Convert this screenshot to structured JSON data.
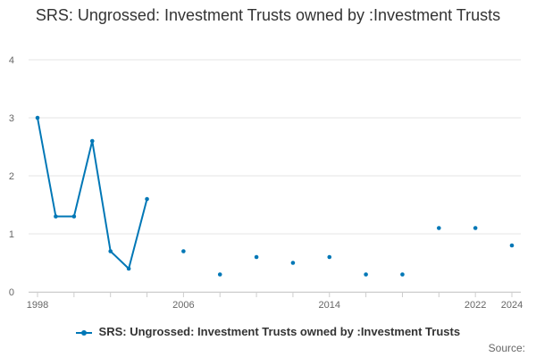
{
  "chart_data": {
    "type": "line",
    "title": "SRS: Ungrossed: Investment Trusts owned by :Investment Trusts",
    "xlabel": "",
    "ylabel": "",
    "xlim": [
      1998,
      2024
    ],
    "ylim": [
      0,
      4
    ],
    "x_ticks": [
      1998,
      2006,
      2014,
      2022,
      2024
    ],
    "y_ticks": [
      0,
      1,
      2,
      3,
      4
    ],
    "grid": "horizontal",
    "legend": "bottom-center",
    "series": [
      {
        "name": "SRS: Ungrossed: Investment Trusts owned by :Investment Trusts",
        "color": "#0077b6",
        "points": [
          {
            "x": 1998,
            "y": 3.0
          },
          {
            "x": 1999,
            "y": 1.3
          },
          {
            "x": 2000,
            "y": 1.3
          },
          {
            "x": 2001,
            "y": 2.6
          },
          {
            "x": 2002,
            "y": 0.7
          },
          {
            "x": 2003,
            "y": 0.4
          },
          {
            "x": 2004,
            "y": 1.6
          },
          {
            "x": 2006,
            "y": 0.7
          },
          {
            "x": 2008,
            "y": 0.3
          },
          {
            "x": 2010,
            "y": 0.6
          },
          {
            "x": 2012,
            "y": 0.5
          },
          {
            "x": 2014,
            "y": 0.6
          },
          {
            "x": 2016,
            "y": 0.3
          },
          {
            "x": 2018,
            "y": 0.3
          },
          {
            "x": 2020,
            "y": 1.1
          },
          {
            "x": 2022,
            "y": 1.1
          },
          {
            "x": 2024,
            "y": 0.8
          }
        ]
      }
    ]
  },
  "credit": "Source:"
}
